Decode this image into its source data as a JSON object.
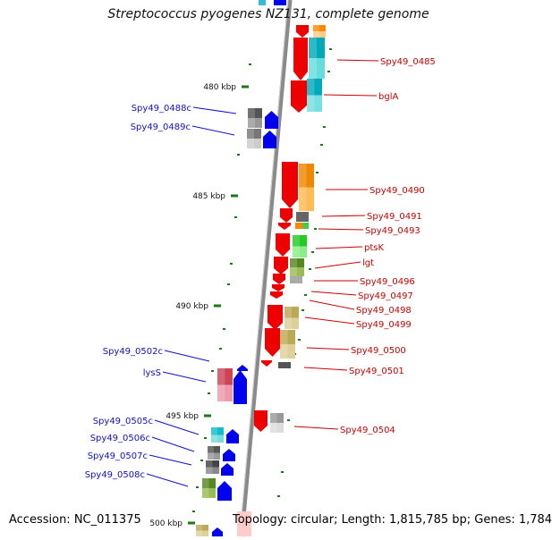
{
  "title": "Streptococcus pyogenes NZ131, complete genome",
  "footer": {
    "accession": "Accession: NC_011375",
    "info": "Topology: circular; Length: 1,815,785 bp; Genes: 1,784"
  },
  "colors": {
    "plus_strand": "#ee0000",
    "minus_strand": "#0000ee",
    "tick": "#1a7a1a",
    "backbone": "#8a8a8a",
    "plus_label": "#cc0000",
    "minus_label": "#1010cc"
  },
  "ticks": [
    {
      "label": "480 kbp"
    },
    {
      "label": "485 kbp"
    },
    {
      "label": "490 kbp"
    },
    {
      "label": "495 kbp"
    },
    {
      "label": "500 kbp"
    }
  ],
  "plus_genes": [
    {
      "label": "Spy49_0485"
    },
    {
      "label": "bglA"
    },
    {
      "label": "Spy49_0490"
    },
    {
      "label": "Spy49_0491"
    },
    {
      "label": "Spy49_0493"
    },
    {
      "label": "ptsK"
    },
    {
      "label": "lgt"
    },
    {
      "label": "Spy49_0496"
    },
    {
      "label": "Spy49_0497"
    },
    {
      "label": "Spy49_0498"
    },
    {
      "label": "Spy49_0499"
    },
    {
      "label": "Spy49_0500"
    },
    {
      "label": "Spy49_0501"
    },
    {
      "label": "Spy49_0504"
    }
  ],
  "minus_genes": [
    {
      "label": "Spy49_0488c"
    },
    {
      "label": "Spy49_0489c"
    },
    {
      "label": "Spy49_0502c"
    },
    {
      "label": "lysS"
    },
    {
      "label": "Spy49_0505c"
    },
    {
      "label": "Spy49_0506c"
    },
    {
      "label": "Spy49_0507c"
    },
    {
      "label": "Spy49_0508c"
    }
  ]
}
